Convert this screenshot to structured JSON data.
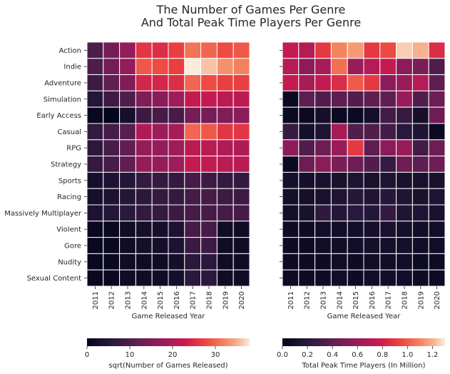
{
  "figure": {
    "title_line1": "The Number of Games Per Genre",
    "title_line2": "And Total Peak Time Players Per Genre"
  },
  "chart_data": [
    {
      "type": "heatmap",
      "xlabel": "Game Released Year",
      "ylabel": "",
      "x": [
        "2011",
        "2012",
        "2013",
        "2014",
        "2015",
        "2016",
        "2017",
        "2018",
        "2019",
        "2020"
      ],
      "y": [
        "Action",
        "Indie",
        "Adventure",
        "Simulation",
        "Early Access",
        "Casual",
        "RPG",
        "Strategy",
        "Sports",
        "Racing",
        "Massively Multiplayer",
        "Violent",
        "Gore",
        "Nudity",
        "Sexual Content"
      ],
      "values": [
        [
          10,
          14,
          17,
          26,
          25,
          27,
          31,
          30,
          28,
          29
        ],
        [
          10,
          14,
          17,
          29,
          28,
          27,
          38,
          36,
          33,
          32
        ],
        [
          8,
          12,
          15,
          24,
          24,
          25,
          30,
          28,
          27,
          27
        ],
        [
          5,
          8,
          10,
          15,
          16,
          18,
          22,
          22,
          21,
          21
        ],
        [
          1,
          0,
          3,
          8,
          9,
          9,
          14,
          14,
          15,
          16
        ],
        [
          7,
          9,
          11,
          20,
          18,
          19,
          30,
          29,
          26,
          26
        ],
        [
          6,
          9,
          12,
          17,
          17,
          18,
          21,
          21,
          20,
          20
        ],
        [
          7,
          9,
          12,
          17,
          17,
          18,
          22,
          22,
          21,
          21
        ],
        [
          3,
          4,
          5,
          7,
          7,
          7,
          9,
          8,
          7,
          7
        ],
        [
          3,
          4,
          5,
          6,
          7,
          7,
          9,
          9,
          8,
          8
        ],
        [
          4,
          5,
          6,
          7,
          7,
          8,
          9,
          9,
          9,
          9
        ],
        [
          1,
          1,
          2,
          3,
          3,
          4,
          9,
          9,
          2,
          2
        ],
        [
          1,
          1,
          2,
          3,
          3,
          4,
          8,
          8,
          2,
          2
        ],
        [
          1,
          1,
          2,
          2,
          2,
          3,
          6,
          6,
          2,
          2
        ],
        [
          1,
          1,
          2,
          2,
          2,
          3,
          6,
          6,
          2,
          2
        ]
      ],
      "colorbar": {
        "label": "sqrt(Number of Games Released)",
        "ticks": [
          "0",
          "10",
          "20",
          "30"
        ],
        "tick_values": [
          0,
          10,
          20,
          30
        ],
        "range": [
          0,
          38
        ]
      }
    },
    {
      "type": "heatmap",
      "xlabel": "Game Released Year",
      "ylabel": "",
      "x": [
        "2011",
        "2012",
        "2013",
        "2014",
        "2015",
        "2016",
        "2017",
        "2018",
        "2019",
        "2020"
      ],
      "y": [
        "Action",
        "Indie",
        "Adventure",
        "Simulation",
        "Early Access",
        "Casual",
        "RPG",
        "Strategy",
        "Sports",
        "Racing",
        "Massively Multiplayer",
        "Violent",
        "Gore",
        "Nudity",
        "Sexual Content"
      ],
      "values": [
        [
          0.75,
          0.7,
          0.9,
          1.1,
          1.15,
          0.9,
          0.95,
          1.25,
          1.2,
          0.85
        ],
        [
          0.7,
          0.55,
          0.65,
          1.05,
          0.6,
          0.7,
          0.75,
          0.55,
          0.5,
          0.35
        ],
        [
          0.75,
          0.65,
          0.75,
          0.85,
          1.0,
          0.9,
          0.55,
          0.6,
          0.7,
          0.4
        ],
        [
          0.05,
          0.4,
          0.35,
          0.4,
          0.35,
          0.4,
          0.4,
          0.6,
          0.35,
          0.45
        ],
        [
          0.05,
          0.05,
          0.1,
          0.05,
          0.05,
          0.1,
          0.3,
          0.25,
          0.1,
          0.45
        ],
        [
          0.25,
          0.1,
          0.15,
          0.65,
          0.35,
          0.35,
          0.3,
          0.2,
          0.15,
          0.05
        ],
        [
          0.55,
          0.35,
          0.45,
          0.6,
          0.9,
          0.4,
          0.55,
          0.6,
          0.3,
          0.45
        ],
        [
          0.05,
          0.45,
          0.55,
          0.5,
          0.45,
          0.35,
          0.25,
          0.45,
          0.4,
          0.45
        ],
        [
          0.1,
          0.1,
          0.12,
          0.12,
          0.14,
          0.12,
          0.14,
          0.12,
          0.12,
          0.12
        ],
        [
          0.1,
          0.1,
          0.12,
          0.14,
          0.18,
          0.15,
          0.18,
          0.14,
          0.12,
          0.14
        ],
        [
          0.1,
          0.12,
          0.22,
          0.18,
          0.2,
          0.18,
          0.24,
          0.15,
          0.15,
          0.12
        ],
        [
          0.06,
          0.06,
          0.08,
          0.08,
          0.08,
          0.1,
          0.12,
          0.1,
          0.08,
          0.08
        ],
        [
          0.06,
          0.06,
          0.08,
          0.08,
          0.08,
          0.1,
          0.1,
          0.1,
          0.08,
          0.08
        ],
        [
          0.06,
          0.06,
          0.06,
          0.08,
          0.06,
          0.08,
          0.08,
          0.08,
          0.06,
          0.06
        ],
        [
          0.06,
          0.06,
          0.06,
          0.08,
          0.06,
          0.08,
          0.08,
          0.08,
          0.06,
          0.06
        ]
      ],
      "colorbar": {
        "label": "Total Peak Time Players (In Million)",
        "ticks": [
          "0.0",
          "0.2",
          "0.4",
          "0.6",
          "0.8",
          "1.0",
          "1.2"
        ],
        "tick_values": [
          0,
          0.2,
          0.4,
          0.6,
          0.8,
          1.0,
          1.2
        ],
        "range": [
          0,
          1.3
        ]
      }
    }
  ],
  "colormap": "rocket"
}
